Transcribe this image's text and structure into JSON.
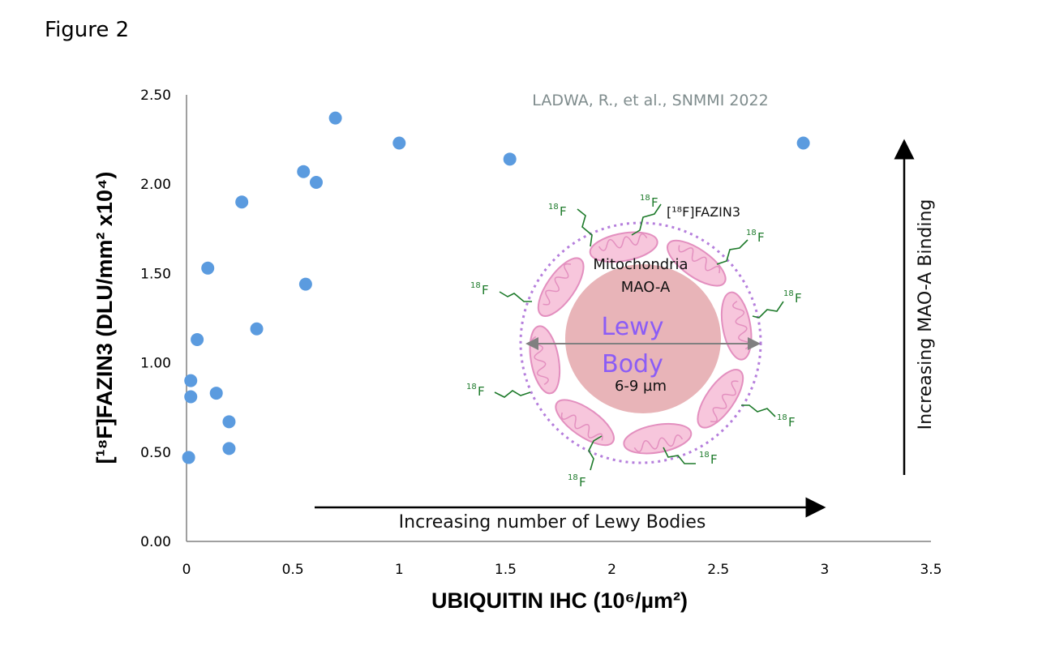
{
  "figure_label": "Figure 2",
  "credit": "LADWA, R., et al., SNMMI 2022",
  "colors": {
    "points": "#5b9bdf",
    "axis": "#808080",
    "mitochondria": "#f7c6dc",
    "lewy_body": "#e8b4b8",
    "lewy_text": "#8b5cf6",
    "label_green": "#1d7a2a",
    "ring": "#b57edc"
  },
  "chart_data": {
    "type": "scatter",
    "xlabel": "UBIQUITIN IHC (10⁶/µm²)",
    "ylabel": "[¹⁸F]FAZIN3 (DLU/mm² x10⁴)",
    "xlim": [
      0,
      3.5
    ],
    "ylim": [
      0,
      2.5
    ],
    "x_ticks": [
      "0",
      "0.5",
      "1",
      "1.5",
      "2",
      "2.5",
      "3",
      "3.5"
    ],
    "y_ticks": [
      "0.00",
      "0.50",
      "1.00",
      "1.50",
      "2.00",
      "2.50"
    ],
    "grid": false,
    "points": [
      {
        "x": 0.01,
        "y": 0.47
      },
      {
        "x": 0.02,
        "y": 0.81
      },
      {
        "x": 0.02,
        "y": 0.9
      },
      {
        "x": 0.05,
        "y": 1.13
      },
      {
        "x": 0.1,
        "y": 1.53
      },
      {
        "x": 0.14,
        "y": 0.83
      },
      {
        "x": 0.2,
        "y": 0.52
      },
      {
        "x": 0.2,
        "y": 0.67
      },
      {
        "x": 0.26,
        "y": 1.9
      },
      {
        "x": 0.33,
        "y": 1.19
      },
      {
        "x": 0.55,
        "y": 2.07
      },
      {
        "x": 0.56,
        "y": 1.44
      },
      {
        "x": 0.61,
        "y": 2.01
      },
      {
        "x": 0.7,
        "y": 2.37
      },
      {
        "x": 1.0,
        "y": 2.23
      },
      {
        "x": 1.52,
        "y": 2.14
      },
      {
        "x": 2.9,
        "y": 2.23
      }
    ]
  },
  "annotations": {
    "x_arrow_label": "Increasing number of Lewy Bodies",
    "y_arrow_label": "Increasing MAO-A Binding"
  },
  "diagram": {
    "tracer_label": "[¹⁸F]FAZIN3",
    "mitochondria_label": "Mitochondria",
    "maoa_label": "MAO-A",
    "lewy_line1": "Lewy",
    "lewy_line2": "Body",
    "size_label": "6-9 µm",
    "f18_sup": "18",
    "f18_letter": "F"
  }
}
